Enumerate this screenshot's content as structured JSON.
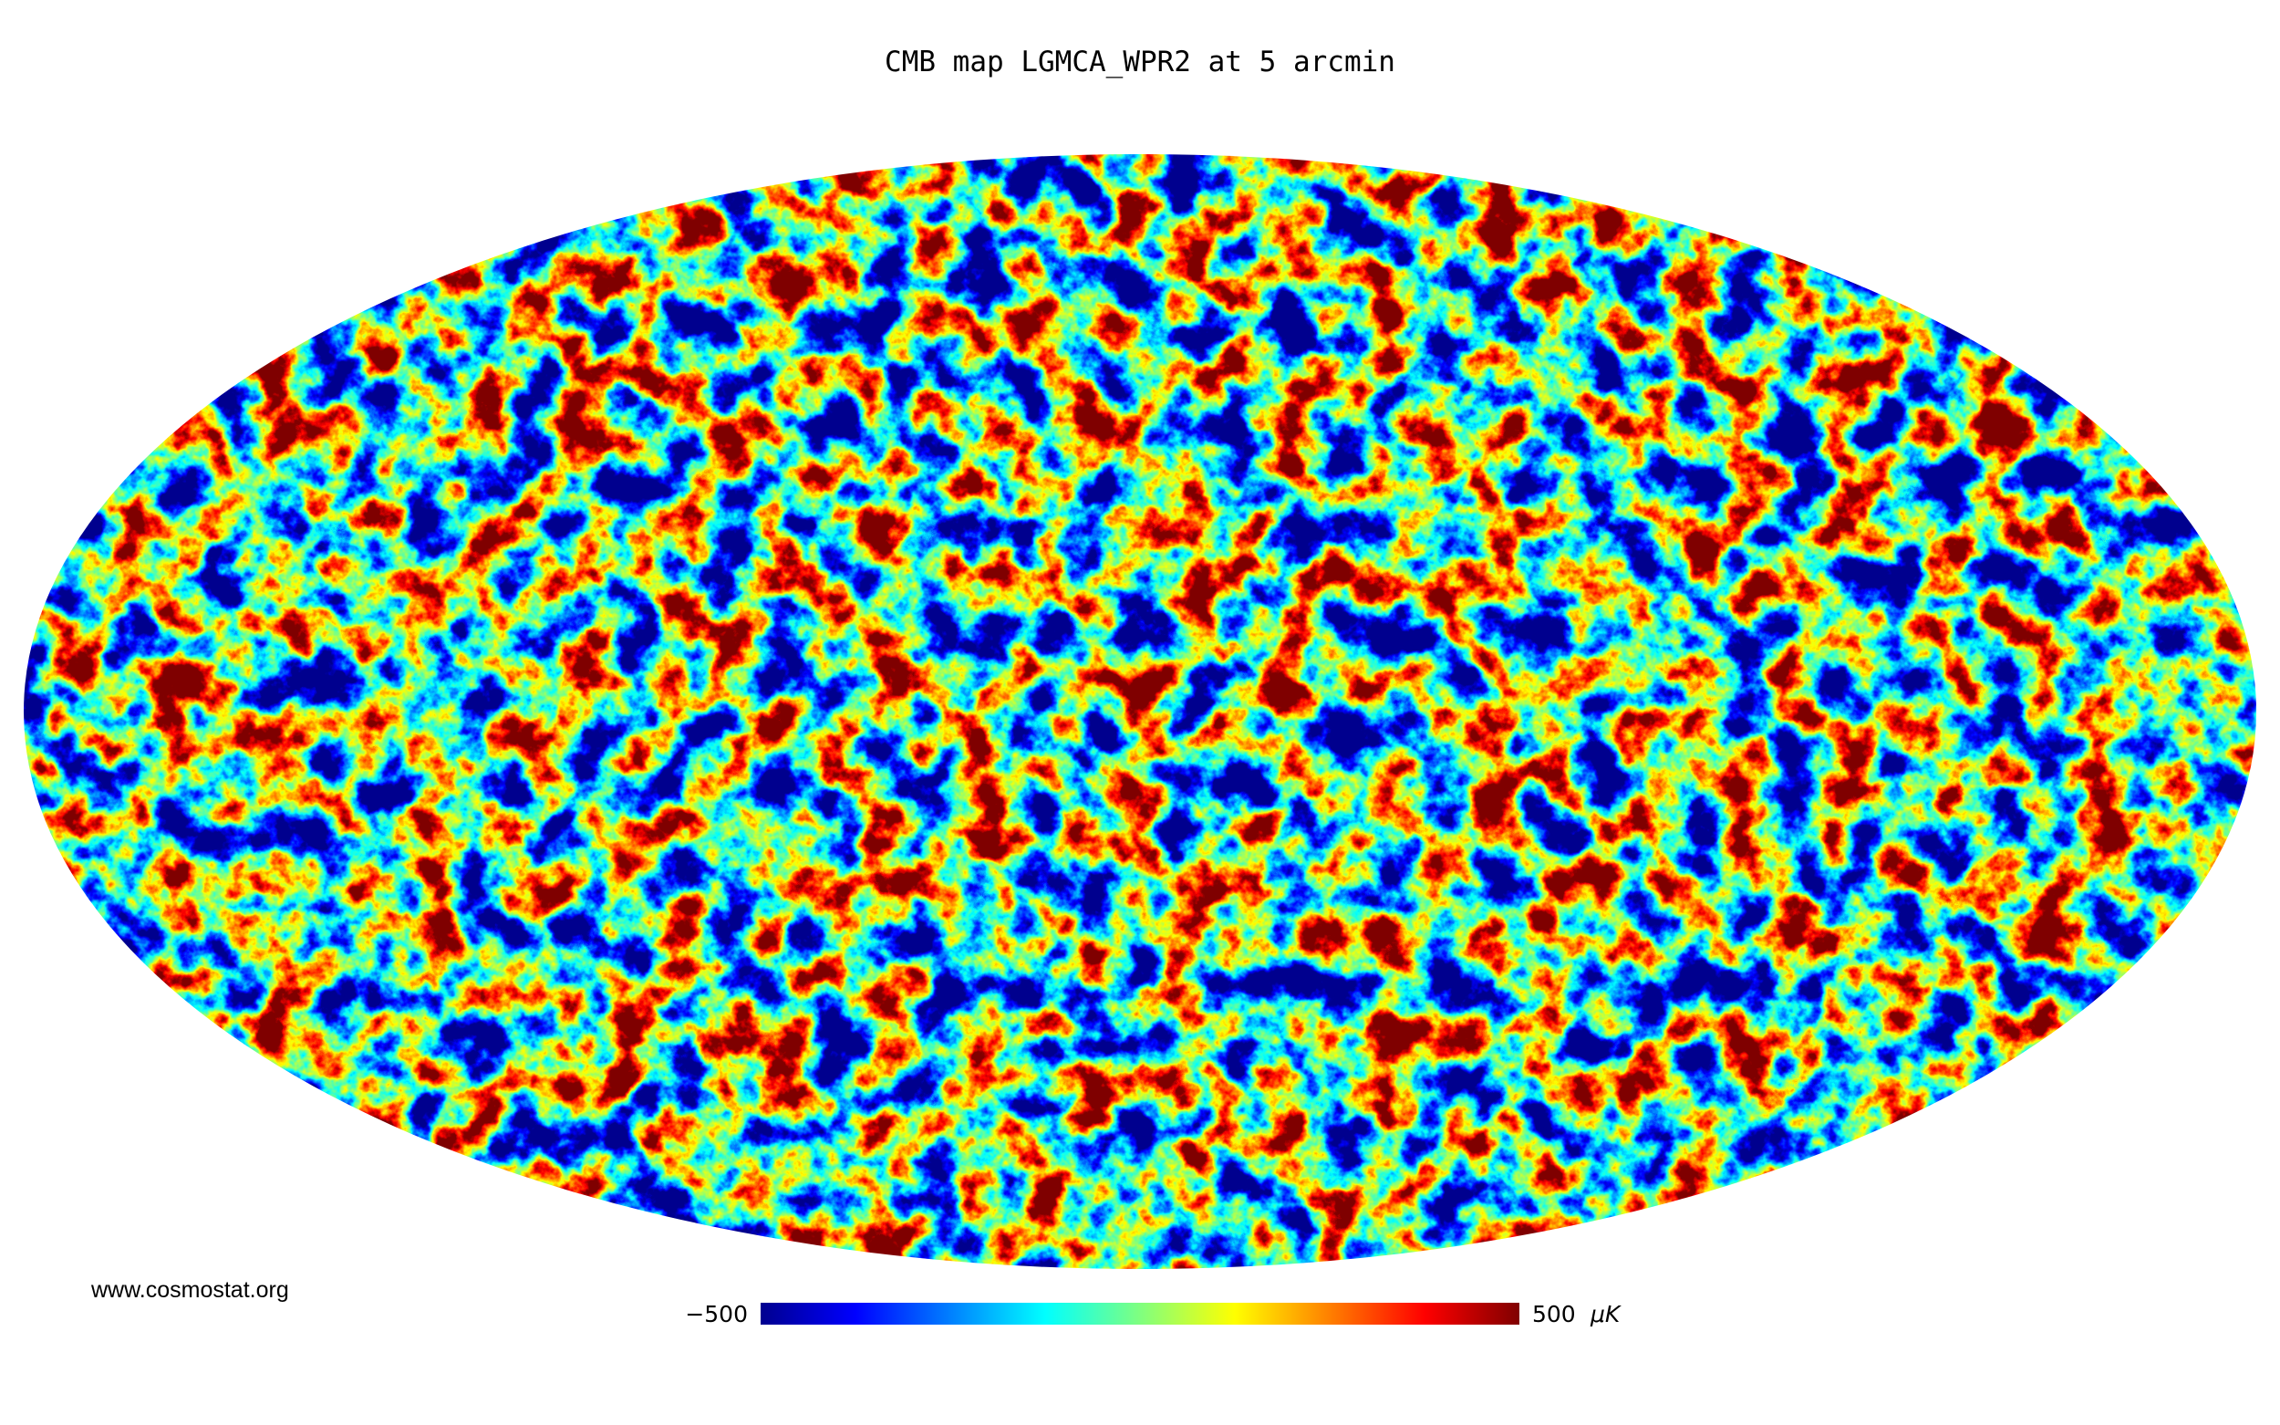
{
  "title": "CMB map LGMCA_WPR2 at 5 arcmin",
  "footer": "www.cosmostat.org",
  "colorbar": {
    "min_label": "−500",
    "max_label": "500",
    "unit": "μK"
  }
}
